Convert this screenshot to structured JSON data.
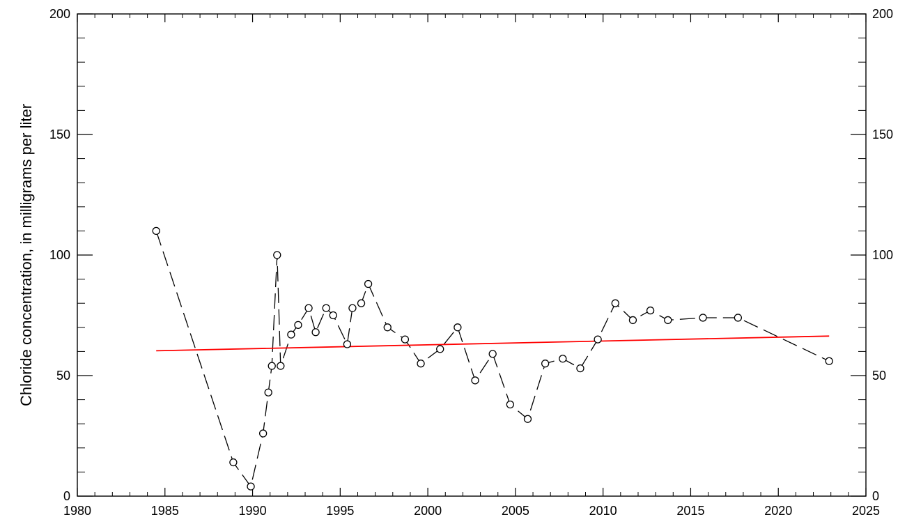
{
  "chart_data": {
    "type": "line",
    "title": "",
    "xlabel": "",
    "ylabel": "Chloride concentration, in milligrams per liter",
    "xlim": [
      1980,
      2025
    ],
    "ylim": [
      0,
      200
    ],
    "x_ticks": [
      "1980",
      "1985",
      "1990",
      "1995",
      "2000",
      "2005",
      "2010",
      "2015",
      "2020",
      "2025"
    ],
    "y_ticks": [
      "0",
      "50",
      "100",
      "150",
      "200"
    ],
    "y_ticks_right": [
      "0",
      "50",
      "100",
      "150",
      "200"
    ],
    "grid": false,
    "series": [
      {
        "style": "dashed line with open circle markers",
        "color": "#000000",
        "x": [
          1984.5,
          1988.9,
          1989.9,
          1990.6,
          1990.9,
          1991.1,
          1991.4,
          1991.6,
          1992.2,
          1992.6,
          1993.2,
          1993.6,
          1994.2,
          1994.6,
          1995.4,
          1995.7,
          1996.2,
          1996.6,
          1997.7,
          1998.7,
          1999.6,
          2000.7,
          2001.7,
          2002.7,
          2003.7,
          2004.7,
          2005.7,
          2006.7,
          2007.7,
          2008.7,
          2009.7,
          2010.7,
          2011.7,
          2012.7,
          2013.7,
          2015.7,
          2017.7,
          2022.9
        ],
        "y": [
          110,
          14,
          4,
          26,
          43,
          54,
          100,
          54,
          67,
          71,
          78,
          68,
          78,
          75,
          63,
          78,
          80,
          88,
          70,
          65,
          55,
          61,
          70,
          48,
          59,
          38,
          32,
          55,
          57,
          53,
          65,
          80,
          73,
          77,
          73,
          74,
          74,
          56
        ]
      },
      {
        "style": "solid trend line",
        "color": "#ff0000",
        "x": [
          1984.5,
          2022.9
        ],
        "y": [
          60.3,
          66.4
        ]
      }
    ]
  }
}
